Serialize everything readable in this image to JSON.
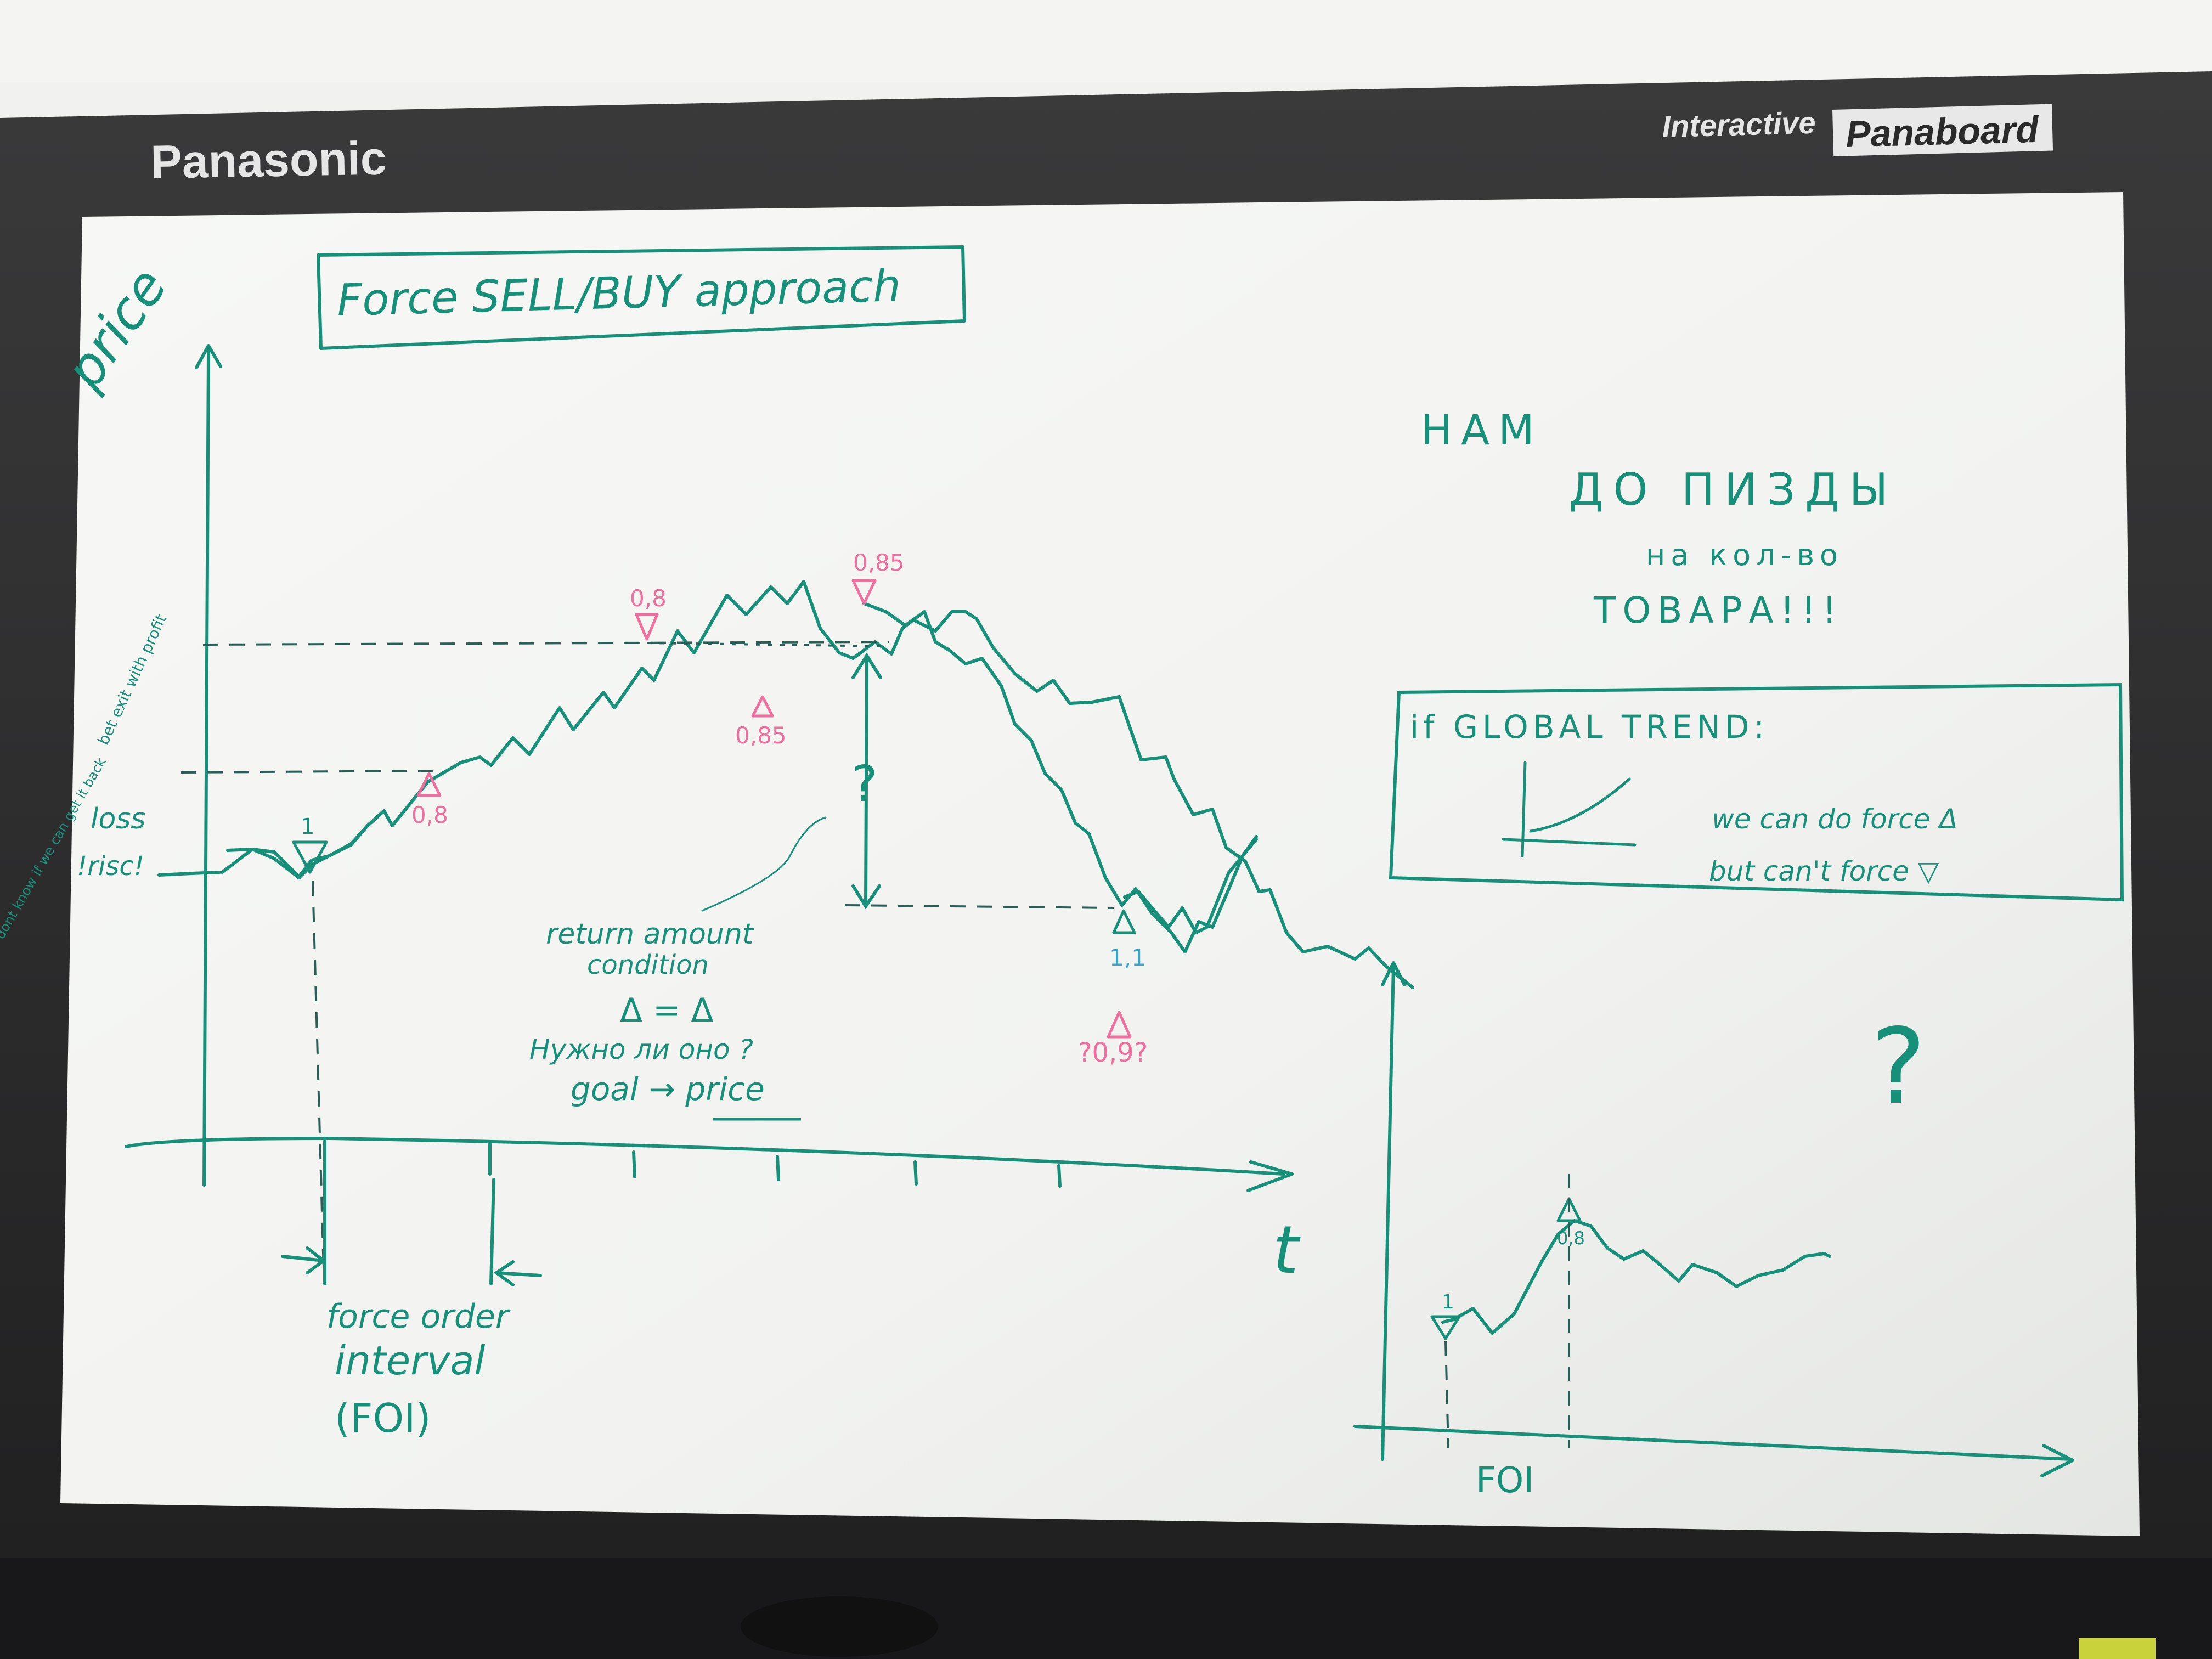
{
  "device": {
    "brand_left": "Panasonic",
    "brand_interactive": "Interactive",
    "brand_panaboard": "Panaboard"
  },
  "colors": {
    "marker_green": "#17907a",
    "marker_pink": "#ee6f9d",
    "marker_blue": "#3aa6c7",
    "board_white": "#f3f4f2",
    "frame_dark": "#2d2d2e"
  },
  "board": {
    "title": "Force SELL/BUY approach",
    "y_axis_label": "price",
    "x_axis_label": "t",
    "left_notes": {
      "bet_exit": "bet exit with profit",
      "loss": "loss",
      "risc": "!risc!",
      "we_dont_know": "we dont know if we can get it back"
    },
    "points": {
      "buy_start": "1",
      "sell_08_top": "0,8",
      "buy_08_low": "0,8",
      "sell_085_top": "0,85",
      "buy_085_low": "0,85",
      "buy_11": "1,1",
      "buy_09": "?0,9?"
    },
    "question_gap": "?",
    "return_text": {
      "line1": "return amount",
      "line2": "condition",
      "delta_line": "Δ = Δ",
      "question": "Нужно ли оно ?",
      "goal": "goal → price"
    },
    "foi_caption": {
      "line1": "force order",
      "line2": "interval",
      "line3": "(FOI)"
    },
    "russian_note": {
      "line1": "НАМ",
      "line2": "ДО ПИЗДЫ",
      "line3": "на кол-во",
      "line4": "ТОВАРА!!!"
    },
    "trend_box": {
      "heading": "if GLOBAL TREND:",
      "line1": "we can do force Δ",
      "line2": "but can't force ▽"
    },
    "lower_chart": {
      "buy_label": "1",
      "sell_label": "0,8",
      "x_label": "FOI",
      "question": "?"
    }
  }
}
